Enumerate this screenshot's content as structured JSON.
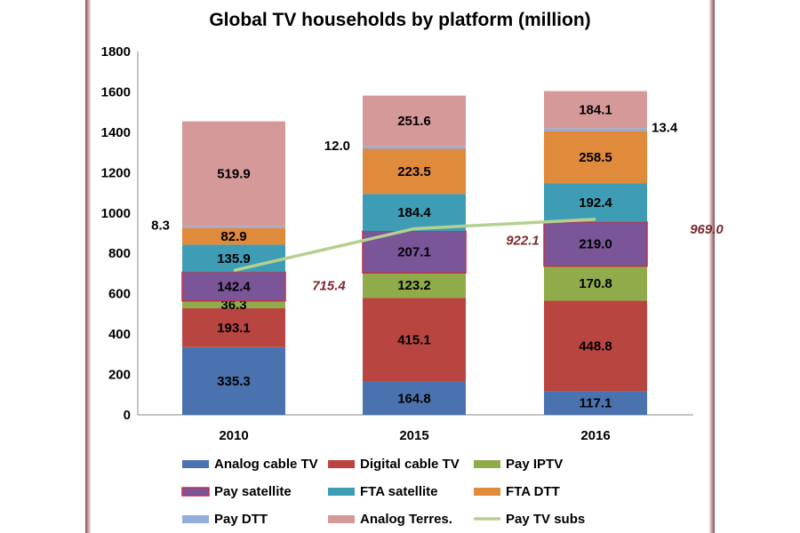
{
  "chart_data": {
    "type": "bar",
    "stacked": true,
    "title": "Global TV households by platform (million)",
    "categories": [
      "2010",
      "2015",
      "2016"
    ],
    "ylim": [
      0,
      1800
    ],
    "yticks": [
      "0",
      "200",
      "400",
      "600",
      "800",
      "1000",
      "1200",
      "1400",
      "1600",
      "1800"
    ],
    "series": [
      {
        "name": "Analog cable TV",
        "color": "#4a72ae",
        "values": [
          335.3,
          164.8,
          117.1
        ],
        "labels": [
          "335.3",
          "164.8",
          "117.1"
        ]
      },
      {
        "name": "Digital cable TV",
        "color": "#b94541",
        "values": [
          193.1,
          415.1,
          448.8
        ],
        "labels": [
          "193.1",
          "415.1",
          "448.8"
        ]
      },
      {
        "name": "Pay IPTV",
        "color": "#8fab4a",
        "values": [
          36.3,
          123.2,
          170.8
        ],
        "labels": [
          "36.3",
          "123.2",
          "170.8"
        ]
      },
      {
        "name": "Pay satellite",
        "color": "#7a5598",
        "border": "#c0304a",
        "values": [
          142.4,
          207.1,
          219.0
        ],
        "labels": [
          "142.4",
          "207.1",
          "219.0"
        ]
      },
      {
        "name": "FTA satellite",
        "color": "#3e9cb5",
        "values": [
          135.9,
          184.4,
          192.4
        ],
        "labels": [
          "135.9",
          "184.4",
          "192.4"
        ]
      },
      {
        "name": "FTA DTT",
        "color": "#e08a3c",
        "values": [
          82.9,
          223.5,
          258.5
        ],
        "labels": [
          "82.9",
          "223.5",
          "258.5"
        ]
      },
      {
        "name": "Pay DTT",
        "color": "#93aedc",
        "values": [
          8.3,
          12.0,
          13.4
        ],
        "labels": [
          "8.3",
          "12.0",
          "13.4"
        ]
      },
      {
        "name": "Analog Terres.",
        "color": "#d6999a",
        "values": [
          519.9,
          251.6,
          184.1
        ],
        "labels": [
          "519.9",
          "251.6",
          "184.1"
        ]
      }
    ],
    "line": {
      "name": "Pay TV subs",
      "color": "#b5d08e",
      "values": [
        715.4,
        922.1,
        969.0
      ],
      "labels": [
        "715.4",
        "922.1",
        "969.0"
      ]
    },
    "legend_position": "bottom",
    "grid": false
  }
}
